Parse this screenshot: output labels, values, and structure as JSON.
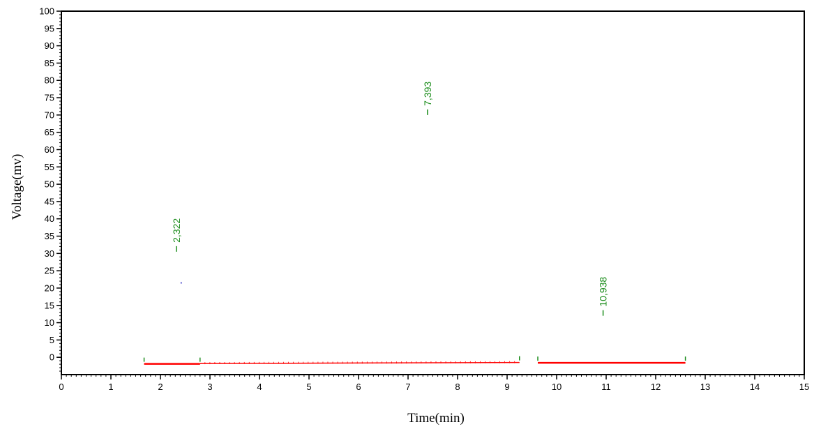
{
  "chart_data": {
    "type": "line",
    "title": "",
    "xlabel": "Time(min)",
    "ylabel": "Voltage(mv)",
    "xlim": [
      0,
      15
    ],
    "ylim": [
      -5,
      100
    ],
    "x_ticks": [
      0,
      1,
      2,
      3,
      4,
      5,
      6,
      7,
      8,
      9,
      10,
      11,
      12,
      13,
      14,
      15
    ],
    "y_ticks": [
      0,
      5,
      10,
      15,
      20,
      25,
      30,
      35,
      40,
      45,
      50,
      55,
      60,
      65,
      70,
      75,
      80,
      85,
      90,
      95,
      100
    ],
    "grid": false,
    "colors": {
      "baseline": "#ff0000",
      "peak_label": "#1a8c1a",
      "axis": "#000000",
      "marker": "#5a5ad0"
    },
    "peaks": [
      {
        "label": "2,322",
        "time": 2.322,
        "mark_y": 30.5
      },
      {
        "label": "7,393",
        "time": 7.393,
        "mark_y": 70
      },
      {
        "label": "10,938",
        "time": 10.938,
        "mark_y": 12
      }
    ],
    "baselines": [
      {
        "x": [
          1.67,
          2.8
        ],
        "y": [
          -1.9,
          -1.9
        ],
        "style": "solid"
      },
      {
        "x": [
          2.8,
          9.25
        ],
        "y": [
          -1.8,
          -1.5
        ],
        "style": "dotted"
      },
      {
        "x": [
          9.62,
          12.6
        ],
        "y": [
          -1.6,
          -1.6
        ],
        "style": "solid"
      }
    ],
    "peak_markers": [
      {
        "x": 1.67,
        "y": -1.9
      },
      {
        "x": 2.8,
        "y": -1.9
      },
      {
        "x": 9.25,
        "y": -1.5
      },
      {
        "x": 9.62,
        "y": -1.6
      },
      {
        "x": 12.6,
        "y": -1.6
      }
    ],
    "stray_points": [
      {
        "x": 2.42,
        "y": 21.5
      }
    ]
  }
}
